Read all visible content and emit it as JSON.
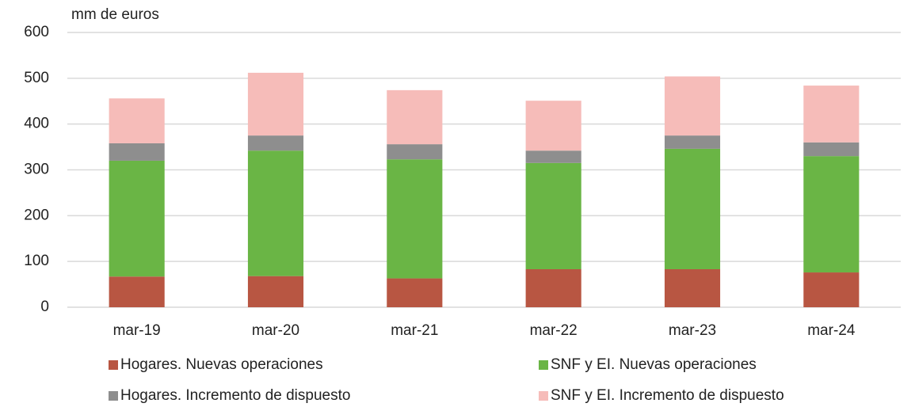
{
  "chart_data": {
    "type": "bar",
    "stacked": true,
    "ylabel": "mm de euros",
    "categories": [
      "mar-19",
      "mar-20",
      "mar-21",
      "mar-22",
      "mar-23",
      "mar-24"
    ],
    "series": [
      {
        "name": "Hogares. Nuevas operaciones",
        "color": "#b85642",
        "values": [
          67,
          68,
          63,
          83,
          83,
          76
        ]
      },
      {
        "name": "SNF y EI. Nuevas operaciones",
        "color": "#6ab545",
        "values": [
          253,
          274,
          260,
          232,
          263,
          254
        ]
      },
      {
        "name": "Hogares. Incremento de dispuesto",
        "color": "#8e8e8e",
        "values": [
          38,
          33,
          33,
          27,
          29,
          30
        ]
      },
      {
        "name": "SNF y EI. Incremento de dispuesto",
        "color": "#f6bcb9",
        "values": [
          98,
          137,
          118,
          109,
          129,
          124
        ]
      }
    ],
    "ylim": [
      0,
      600
    ],
    "yticks": [
      0,
      100,
      200,
      300,
      400,
      500,
      600
    ],
    "grid": true
  }
}
